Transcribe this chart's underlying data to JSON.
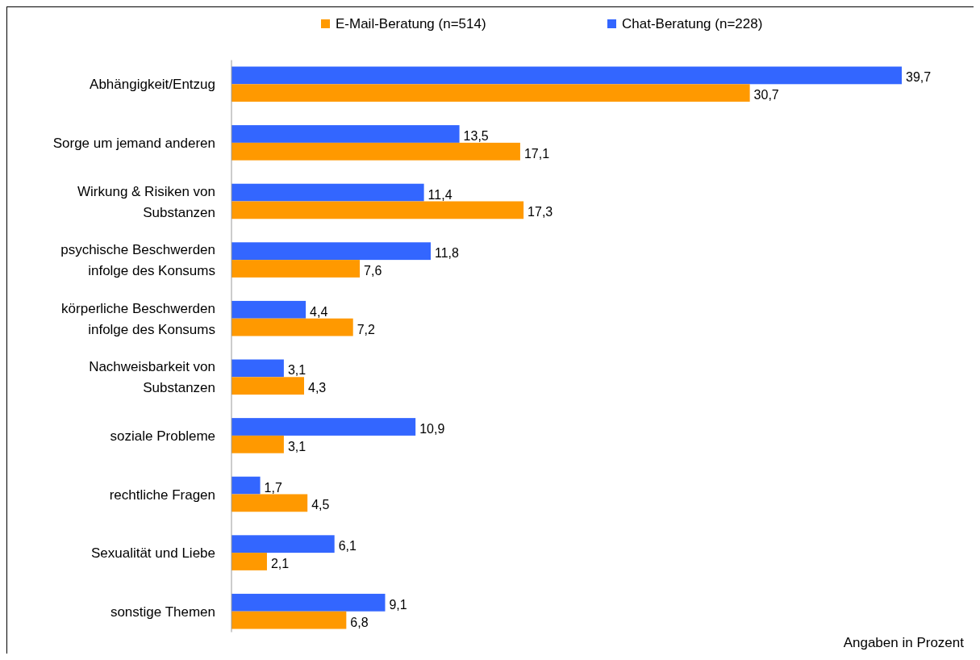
{
  "chart_data": {
    "type": "bar",
    "orientation": "horizontal",
    "categories": [
      "Abhängigkeit/Entzug",
      "Sorge um jemand anderen",
      "Wirkung & Risiken von Substanzen",
      "psychische Beschwerden infolge des Konsums",
      "körperliche Beschwerden infolge des Konsums",
      "Nachweisbarkeit von Substanzen",
      "soziale Probleme",
      "rechtliche Fragen",
      "Sexualität und Liebe",
      "sonstige Themen"
    ],
    "series": [
      {
        "name": "Chat-Beratung (n=228)",
        "color": "#3366ff",
        "values": [
          39.7,
          13.5,
          11.4,
          11.8,
          4.4,
          3.1,
          10.9,
          1.7,
          6.1,
          9.1
        ],
        "value_labels": [
          "39,7",
          "13,5",
          "11,4",
          "11,8",
          "4,4",
          "3,1",
          "10,9",
          "1,7",
          "6,1",
          "9,1"
        ]
      },
      {
        "name": "E-Mail-Beratung (n=514)",
        "color": "#ff9900",
        "values": [
          30.7,
          17.1,
          17.3,
          7.6,
          7.2,
          4.3,
          3.1,
          4.5,
          2.1,
          6.8
        ],
        "value_labels": [
          "30,7",
          "17,1",
          "17,3",
          "7,6",
          "7,2",
          "4,3",
          "3,1",
          "4,5",
          "2,1",
          "6,8"
        ]
      }
    ],
    "legend": "top",
    "tick_labels": "y",
    "annotations": [
      "Angaben in Prozent"
    ]
  }
}
